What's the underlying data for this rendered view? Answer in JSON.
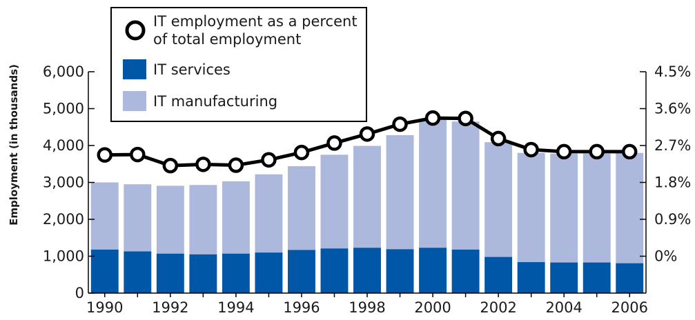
{
  "chart_data": {
    "type": "bar",
    "subtype": "stacked-bar-with-line",
    "x": [
      "1990",
      "1991",
      "1992",
      "1993",
      "1994",
      "1995",
      "1996",
      "1997",
      "1998",
      "1999",
      "2000",
      "2001",
      "2002",
      "2003",
      "2004",
      "2005",
      "2006"
    ],
    "x_tick_labels": [
      "1990",
      "1992",
      "1994",
      "1996",
      "1998",
      "2000",
      "2002",
      "2004",
      "2006"
    ],
    "series": [
      {
        "name": "IT services",
        "kind": "bar-stack-bottom",
        "color": "#0057a8",
        "values": [
          1180,
          1130,
          1070,
          1050,
          1070,
          1100,
          1170,
          1210,
          1230,
          1190,
          1230,
          1180,
          980,
          840,
          830,
          830,
          810
        ]
      },
      {
        "name": "IT manufacturing",
        "kind": "bar-stack-top",
        "color": "#adb8dd",
        "values": [
          1820,
          1820,
          1840,
          1880,
          1960,
          2120,
          2270,
          2540,
          2760,
          3090,
          3470,
          3470,
          3110,
          2960,
          2950,
          2950,
          2990
        ]
      },
      {
        "name": "IT employment as a percent of total employment",
        "kind": "line-right-axis",
        "color": "#000000",
        "values": [
          2.47,
          2.48,
          2.21,
          2.24,
          2.22,
          2.35,
          2.53,
          2.76,
          2.98,
          3.22,
          3.37,
          3.36,
          2.87,
          2.6,
          2.55,
          2.55,
          2.55
        ]
      }
    ],
    "title": "",
    "xlabel": "",
    "ylabel": "Employment (in thousands)",
    "ylim": [
      0,
      6000
    ],
    "yticks": [
      "0",
      "1,000",
      "2,000",
      "3,000",
      "4,000",
      "5,000",
      "6,000"
    ],
    "y2lim": [
      -0.9,
      4.5
    ],
    "y2ticks": [
      {
        "value": 0,
        "label": "0%"
      },
      {
        "value": 0.9,
        "label": "0.9%"
      },
      {
        "value": 1.8,
        "label": "1.8%"
      },
      {
        "value": 2.7,
        "label": "2.7%"
      },
      {
        "value": 3.6,
        "label": "3.6%"
      },
      {
        "value": 4.5,
        "label": "4.5%"
      }
    ],
    "grid": false,
    "legend": {
      "placement": "top-left",
      "line_entry": [
        "IT employment as a percent",
        "of total employment"
      ],
      "services_entry": "IT services",
      "manufacturing_entry": "IT manufacturing"
    }
  }
}
